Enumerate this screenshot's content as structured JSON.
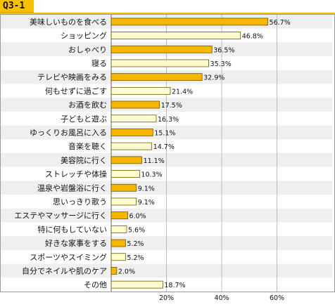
{
  "header": {
    "title": "Q3-1"
  },
  "colors": {
    "accent": "#f6c000",
    "bar_highlight": "#f7b500",
    "bar_light": "#fffbd0",
    "bar_stroke": "#6a5a00",
    "row_alt": "#efefef",
    "grid": "#bbbbbb"
  },
  "chart_data": {
    "type": "bar",
    "orientation": "horizontal",
    "title": "Q3-1",
    "categories": [
      "美味しいものを食べる",
      "ショッピング",
      "おしゃべり",
      "寝る",
      "テレビや映画をみる",
      "何もせずに過ごす",
      "お酒を飲む",
      "子どもと遊ぶ",
      "ゆっくりお風呂に入る",
      "音楽を聴く",
      "美容院に行く",
      "ストレッチや体操",
      "温泉や岩盤浴に行く",
      "思いっきり歌う",
      "エステやマッサージに行く",
      "特に何もしていない",
      "好きな家事をする",
      "スポーツやスイミング",
      "自分でネイルや肌のケア",
      "その他"
    ],
    "values": [
      56.7,
      46.8,
      36.5,
      35.3,
      32.9,
      21.4,
      17.5,
      16.3,
      15.1,
      14.7,
      11.1,
      10.3,
      9.1,
      9.1,
      6.0,
      5.6,
      5.2,
      5.2,
      2.0,
      18.7
    ],
    "value_labels": [
      "56.7%",
      "46.8%",
      "36.5%",
      "35.3%",
      "32.9%",
      "21.4%",
      "17.5%",
      "16.3%",
      "15.1%",
      "14.7%",
      "11.1%",
      "10.3%",
      "9.1%",
      "9.1%",
      "6.0%",
      "5.6%",
      "5.2%",
      "5.2%",
      "2.0%",
      "18.7%"
    ],
    "highlight": [
      true,
      false,
      true,
      false,
      true,
      false,
      true,
      false,
      true,
      false,
      true,
      false,
      true,
      false,
      true,
      false,
      true,
      false,
      true,
      false
    ],
    "xlim": [
      0,
      80
    ],
    "xticks": [
      20,
      40,
      60
    ],
    "xtick_labels": [
      "20%",
      "40%",
      "60%"
    ],
    "xlabel": "",
    "ylabel": "",
    "grid": true,
    "alternating_row_shading": true
  }
}
